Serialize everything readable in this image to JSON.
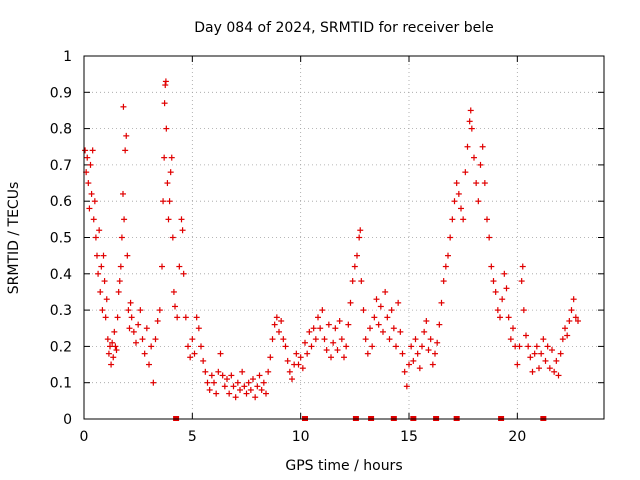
{
  "chart_data": {
    "type": "scatter",
    "title": "Day 084 of 2024, SRMTID for receiver bele",
    "xlabel": "GPS time / hours",
    "ylabel": "SRMTID / TECUs",
    "xlim": [
      0,
      24
    ],
    "ylim": [
      0,
      1
    ],
    "xticks": [
      0,
      5,
      10,
      15,
      20
    ],
    "xtick_labels": [
      "0",
      "5",
      "10",
      "15",
      "20"
    ],
    "yticks": [
      0,
      0.1,
      0.2,
      0.3,
      0.4,
      0.5,
      0.6,
      0.7,
      0.8,
      0.9,
      1
    ],
    "ytick_labels": [
      "0",
      "0.1",
      "0.2",
      "0.3",
      "0.4",
      "0.5",
      "0.6",
      "0.7",
      "0.8",
      "0.9",
      "1"
    ],
    "grid": true,
    "marker": "plus",
    "color": "#e00000",
    "series": [
      {
        "name": "SRMTID",
        "points": [
          [
            0.05,
            0.74
          ],
          [
            0.1,
            0.68
          ],
          [
            0.15,
            0.72
          ],
          [
            0.2,
            0.65
          ],
          [
            0.25,
            0.58
          ],
          [
            0.3,
            0.7
          ],
          [
            0.35,
            0.62
          ],
          [
            0.4,
            0.74
          ],
          [
            0.45,
            0.55
          ],
          [
            0.5,
            0.6
          ],
          [
            0.55,
            0.5
          ],
          [
            0.6,
            0.45
          ],
          [
            0.65,
            0.4
          ],
          [
            0.7,
            0.52
          ],
          [
            0.75,
            0.35
          ],
          [
            0.8,
            0.42
          ],
          [
            0.85,
            0.3
          ],
          [
            0.9,
            0.45
          ],
          [
            0.95,
            0.38
          ],
          [
            1.0,
            0.28
          ],
          [
            1.05,
            0.33
          ],
          [
            1.1,
            0.22
          ],
          [
            1.15,
            0.18
          ],
          [
            1.2,
            0.2
          ],
          [
            1.25,
            0.15
          ],
          [
            1.3,
            0.21
          ],
          [
            1.35,
            0.17
          ],
          [
            1.4,
            0.24
          ],
          [
            1.45,
            0.2
          ],
          [
            1.5,
            0.19
          ],
          [
            1.55,
            0.28
          ],
          [
            1.6,
            0.35
          ],
          [
            1.65,
            0.38
          ],
          [
            1.7,
            0.42
          ],
          [
            1.75,
            0.5
          ],
          [
            1.8,
            0.62
          ],
          [
            1.85,
            0.55
          ],
          [
            1.9,
            0.74
          ],
          [
            1.95,
            0.78
          ],
          [
            1.82,
            0.86
          ],
          [
            2.0,
            0.45
          ],
          [
            2.05,
            0.3
          ],
          [
            2.1,
            0.25
          ],
          [
            2.15,
            0.32
          ],
          [
            2.2,
            0.28
          ],
          [
            2.3,
            0.24
          ],
          [
            2.4,
            0.21
          ],
          [
            2.5,
            0.26
          ],
          [
            2.6,
            0.3
          ],
          [
            2.7,
            0.22
          ],
          [
            2.8,
            0.18
          ],
          [
            2.9,
            0.25
          ],
          [
            3.0,
            0.15
          ],
          [
            3.1,
            0.2
          ],
          [
            3.2,
            0.1
          ],
          [
            3.3,
            0.22
          ],
          [
            3.4,
            0.27
          ],
          [
            3.5,
            0.3
          ],
          [
            3.6,
            0.42
          ],
          [
            3.65,
            0.6
          ],
          [
            3.7,
            0.72
          ],
          [
            3.72,
            0.87
          ],
          [
            3.75,
            0.92
          ],
          [
            3.78,
            0.93
          ],
          [
            3.8,
            0.8
          ],
          [
            3.85,
            0.65
          ],
          [
            3.9,
            0.55
          ],
          [
            3.95,
            0.6
          ],
          [
            4.0,
            0.68
          ],
          [
            4.05,
            0.72
          ],
          [
            4.1,
            0.5
          ],
          [
            4.15,
            0.35
          ],
          [
            4.2,
            0.31
          ],
          [
            4.3,
            0.28
          ],
          [
            4.4,
            0.42
          ],
          [
            4.5,
            0.55
          ],
          [
            4.55,
            0.52
          ],
          [
            4.6,
            0.4
          ],
          [
            4.7,
            0.28
          ],
          [
            4.8,
            0.2
          ],
          [
            4.9,
            0.17
          ],
          [
            5.0,
            0.22
          ],
          [
            5.1,
            0.18
          ],
          [
            5.2,
            0.28
          ],
          [
            5.3,
            0.25
          ],
          [
            5.4,
            0.2
          ],
          [
            5.5,
            0.16
          ],
          [
            5.6,
            0.13
          ],
          [
            5.7,
            0.1
          ],
          [
            5.8,
            0.08
          ],
          [
            5.9,
            0.12
          ],
          [
            6.0,
            0.1
          ],
          [
            6.1,
            0.07
          ],
          [
            6.2,
            0.13
          ],
          [
            6.3,
            0.18
          ],
          [
            6.4,
            0.12
          ],
          [
            6.5,
            0.09
          ],
          [
            6.6,
            0.11
          ],
          [
            6.7,
            0.07
          ],
          [
            6.8,
            0.12
          ],
          [
            6.9,
            0.09
          ],
          [
            7.0,
            0.06
          ],
          [
            7.1,
            0.1
          ],
          [
            7.2,
            0.08
          ],
          [
            7.3,
            0.13
          ],
          [
            7.4,
            0.09
          ],
          [
            7.5,
            0.07
          ],
          [
            7.6,
            0.1
          ],
          [
            7.7,
            0.08
          ],
          [
            7.8,
            0.11
          ],
          [
            7.9,
            0.06
          ],
          [
            8.0,
            0.09
          ],
          [
            8.1,
            0.12
          ],
          [
            8.2,
            0.08
          ],
          [
            8.3,
            0.1
          ],
          [
            8.4,
            0.07
          ],
          [
            8.5,
            0.13
          ],
          [
            8.6,
            0.17
          ],
          [
            8.7,
            0.22
          ],
          [
            8.8,
            0.26
          ],
          [
            8.9,
            0.28
          ],
          [
            9.0,
            0.24
          ],
          [
            9.1,
            0.27
          ],
          [
            9.2,
            0.22
          ],
          [
            9.3,
            0.2
          ],
          [
            9.4,
            0.16
          ],
          [
            9.5,
            0.13
          ],
          [
            9.6,
            0.11
          ],
          [
            9.7,
            0.15
          ],
          [
            9.8,
            0.18
          ],
          [
            9.9,
            0.15
          ],
          [
            10.0,
            0.17
          ],
          [
            10.1,
            0.14
          ],
          [
            10.2,
            0.21
          ],
          [
            10.3,
            0.18
          ],
          [
            10.4,
            0.24
          ],
          [
            10.5,
            0.2
          ],
          [
            10.6,
            0.25
          ],
          [
            10.7,
            0.22
          ],
          [
            10.8,
            0.28
          ],
          [
            10.9,
            0.25
          ],
          [
            11.0,
            0.3
          ],
          [
            11.1,
            0.22
          ],
          [
            11.2,
            0.19
          ],
          [
            11.3,
            0.26
          ],
          [
            11.4,
            0.17
          ],
          [
            11.5,
            0.21
          ],
          [
            11.6,
            0.25
          ],
          [
            11.7,
            0.19
          ],
          [
            11.8,
            0.27
          ],
          [
            11.9,
            0.22
          ],
          [
            12.0,
            0.17
          ],
          [
            12.1,
            0.2
          ],
          [
            12.2,
            0.26
          ],
          [
            12.3,
            0.32
          ],
          [
            12.4,
            0.38
          ],
          [
            12.5,
            0.42
          ],
          [
            12.6,
            0.45
          ],
          [
            12.7,
            0.5
          ],
          [
            12.75,
            0.52
          ],
          [
            12.8,
            0.38
          ],
          [
            12.9,
            0.3
          ],
          [
            13.0,
            0.22
          ],
          [
            13.1,
            0.18
          ],
          [
            13.2,
            0.25
          ],
          [
            13.3,
            0.2
          ],
          [
            13.4,
            0.28
          ],
          [
            13.5,
            0.33
          ],
          [
            13.6,
            0.26
          ],
          [
            13.7,
            0.31
          ],
          [
            13.8,
            0.24
          ],
          [
            13.9,
            0.35
          ],
          [
            14.0,
            0.28
          ],
          [
            14.1,
            0.22
          ],
          [
            14.2,
            0.3
          ],
          [
            14.3,
            0.25
          ],
          [
            14.4,
            0.2
          ],
          [
            14.5,
            0.32
          ],
          [
            14.6,
            0.24
          ],
          [
            14.7,
            0.18
          ],
          [
            14.8,
            0.13
          ],
          [
            14.9,
            0.09
          ],
          [
            15.0,
            0.15
          ],
          [
            15.1,
            0.2
          ],
          [
            15.2,
            0.16
          ],
          [
            15.3,
            0.22
          ],
          [
            15.4,
            0.18
          ],
          [
            15.5,
            0.14
          ],
          [
            15.6,
            0.2
          ],
          [
            15.7,
            0.24
          ],
          [
            15.8,
            0.27
          ],
          [
            15.9,
            0.19
          ],
          [
            16.0,
            0.22
          ],
          [
            16.1,
            0.15
          ],
          [
            16.2,
            0.18
          ],
          [
            16.3,
            0.21
          ],
          [
            16.4,
            0.26
          ],
          [
            16.5,
            0.32
          ],
          [
            16.6,
            0.38
          ],
          [
            16.7,
            0.42
          ],
          [
            16.8,
            0.45
          ],
          [
            16.9,
            0.5
          ],
          [
            17.0,
            0.55
          ],
          [
            17.1,
            0.6
          ],
          [
            17.2,
            0.65
          ],
          [
            17.3,
            0.62
          ],
          [
            17.4,
            0.58
          ],
          [
            17.5,
            0.55
          ],
          [
            17.6,
            0.68
          ],
          [
            17.7,
            0.75
          ],
          [
            17.8,
            0.82
          ],
          [
            17.85,
            0.85
          ],
          [
            17.9,
            0.8
          ],
          [
            18.0,
            0.72
          ],
          [
            18.1,
            0.65
          ],
          [
            18.2,
            0.6
          ],
          [
            18.3,
            0.7
          ],
          [
            18.4,
            0.75
          ],
          [
            18.5,
            0.65
          ],
          [
            18.6,
            0.55
          ],
          [
            18.7,
            0.5
          ],
          [
            18.8,
            0.42
          ],
          [
            18.9,
            0.38
          ],
          [
            19.0,
            0.35
          ],
          [
            19.1,
            0.3
          ],
          [
            19.2,
            0.28
          ],
          [
            19.3,
            0.33
          ],
          [
            19.4,
            0.4
          ],
          [
            19.5,
            0.36
          ],
          [
            19.6,
            0.28
          ],
          [
            19.7,
            0.22
          ],
          [
            19.8,
            0.25
          ],
          [
            19.9,
            0.2
          ],
          [
            20.0,
            0.15
          ],
          [
            20.1,
            0.2
          ],
          [
            20.2,
            0.38
          ],
          [
            20.25,
            0.42
          ],
          [
            20.3,
            0.3
          ],
          [
            20.4,
            0.23
          ],
          [
            20.5,
            0.2
          ],
          [
            20.6,
            0.17
          ],
          [
            20.7,
            0.13
          ],
          [
            20.8,
            0.18
          ],
          [
            20.9,
            0.2
          ],
          [
            21.0,
            0.14
          ],
          [
            21.1,
            0.18
          ],
          [
            21.2,
            0.22
          ],
          [
            21.3,
            0.16
          ],
          [
            21.4,
            0.2
          ],
          [
            21.5,
            0.14
          ],
          [
            21.6,
            0.19
          ],
          [
            21.7,
            0.13
          ],
          [
            21.8,
            0.16
          ],
          [
            21.9,
            0.12
          ],
          [
            22.0,
            0.18
          ],
          [
            22.1,
            0.22
          ],
          [
            22.2,
            0.25
          ],
          [
            22.3,
            0.23
          ],
          [
            22.4,
            0.27
          ],
          [
            22.5,
            0.3
          ],
          [
            22.6,
            0.33
          ],
          [
            22.7,
            0.28
          ],
          [
            22.8,
            0.27
          ]
        ]
      }
    ],
    "zero_markers_x": [
      4.25,
      10.2,
      12.55,
      13.25,
      14.3,
      15.2,
      16.25,
      17.2,
      19.25,
      21.2
    ]
  }
}
